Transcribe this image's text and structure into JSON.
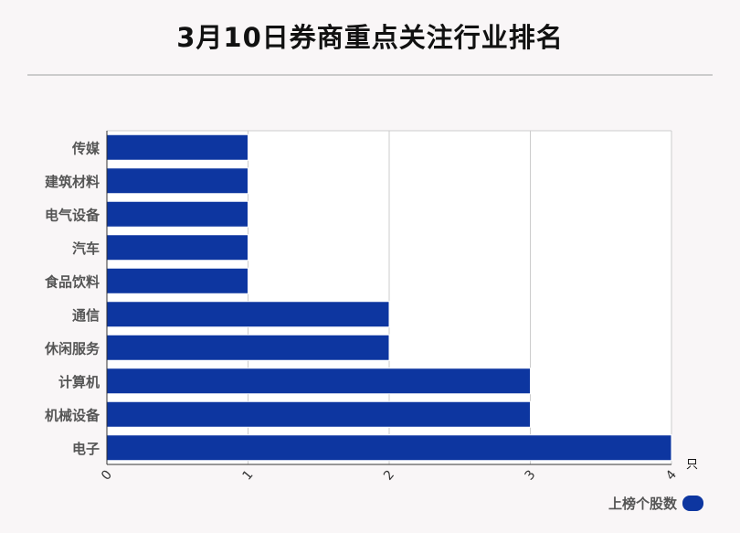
{
  "title": "3月10日券商重点关注行业排名",
  "chart_data": {
    "type": "bar",
    "orientation": "horizontal",
    "categories": [
      "传媒",
      "建筑材料",
      "电气设备",
      "汽车",
      "食品饮料",
      "通信",
      "休闲服务",
      "计算机",
      "机械设备",
      "电子"
    ],
    "series": [
      {
        "name": "上榜个股数",
        "values": [
          1,
          1,
          1,
          1,
          1,
          2,
          2,
          3,
          3,
          4
        ]
      }
    ],
    "xlim": [
      0,
      4
    ],
    "xticks": [
      "0",
      "1",
      "2",
      "3",
      "4"
    ],
    "xunit": "只",
    "grid": true,
    "legend_position": "bottom-right",
    "bar_color": "#0d36a0"
  }
}
